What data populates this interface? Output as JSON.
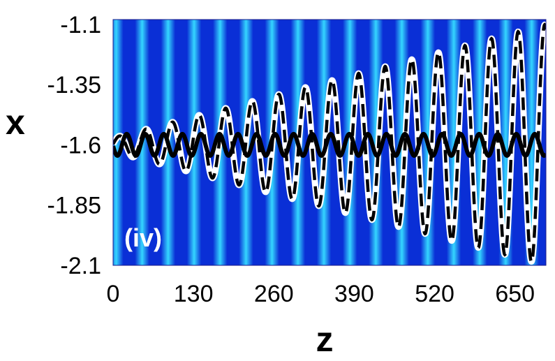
{
  "chart_data": {
    "type": "line",
    "title": "",
    "panel_label": "(iv)",
    "xlabel": "z",
    "ylabel": "x",
    "xlim": [
      0,
      700
    ],
    "ylim": [
      -2.1,
      -1.08
    ],
    "x_ticks": [
      0,
      130,
      260,
      390,
      520,
      650
    ],
    "x_tick_labels": [
      "0",
      "130",
      "260",
      "390",
      "520",
      "650"
    ],
    "y_ticks": [
      -1.1,
      -1.35,
      -1.6,
      -1.85,
      -2.1
    ],
    "y_tick_labels": [
      "-1.1",
      "-1.35",
      "-1.6",
      "-1.85",
      "-2.1"
    ],
    "background": {
      "type": "heatmap",
      "description_colors": [
        "#0a2fd6",
        "#34d6ff"
      ],
      "stripe_period_z": 42
    },
    "series": [
      {
        "style": "dashed black with white outline",
        "color": "#000000",
        "center": -1.6,
        "amplitude_start": 0.03,
        "amplitude_end": 0.5,
        "period_z": 43,
        "phase_z": 10
      },
      {
        "style": "solid black",
        "color": "#000000",
        "center": -1.6,
        "amplitude_start": 0.045,
        "amplitude_end": 0.045,
        "period_z": 30,
        "phase_z": 22
      }
    ],
    "grid": false,
    "legend": "none"
  }
}
